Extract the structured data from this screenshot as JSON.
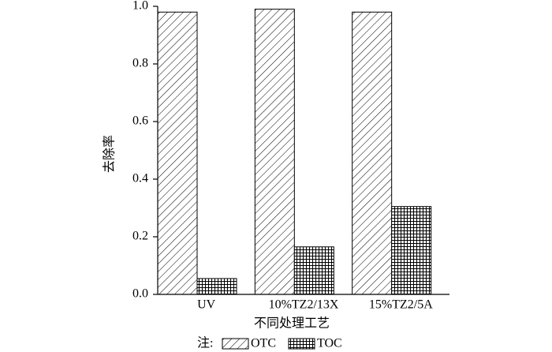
{
  "chart_data": {
    "type": "bar",
    "y_label": "去除率",
    "x_label": "不同处理工艺",
    "legend_prefix": "注:",
    "categories": [
      "UV",
      "10%TZ2/13X",
      "15%TZ2/5A"
    ],
    "series": [
      {
        "name": "OTC",
        "color": "#000000",
        "pattern": "diagonal",
        "values": [
          0.98,
          0.99,
          0.98
        ]
      },
      {
        "name": "TOC",
        "color": "#000000",
        "pattern": "grid",
        "values": [
          0.055,
          0.165,
          0.305
        ]
      }
    ],
    "ylim": [
      0,
      1.0
    ],
    "yticks": [
      {
        "value": 0,
        "label": "0.0"
      },
      0.2,
      0.4,
      0.6,
      0.8,
      {
        "value": 1.0,
        "label": "1.0"
      }
    ],
    "legend": "bottom",
    "grid": false
  }
}
